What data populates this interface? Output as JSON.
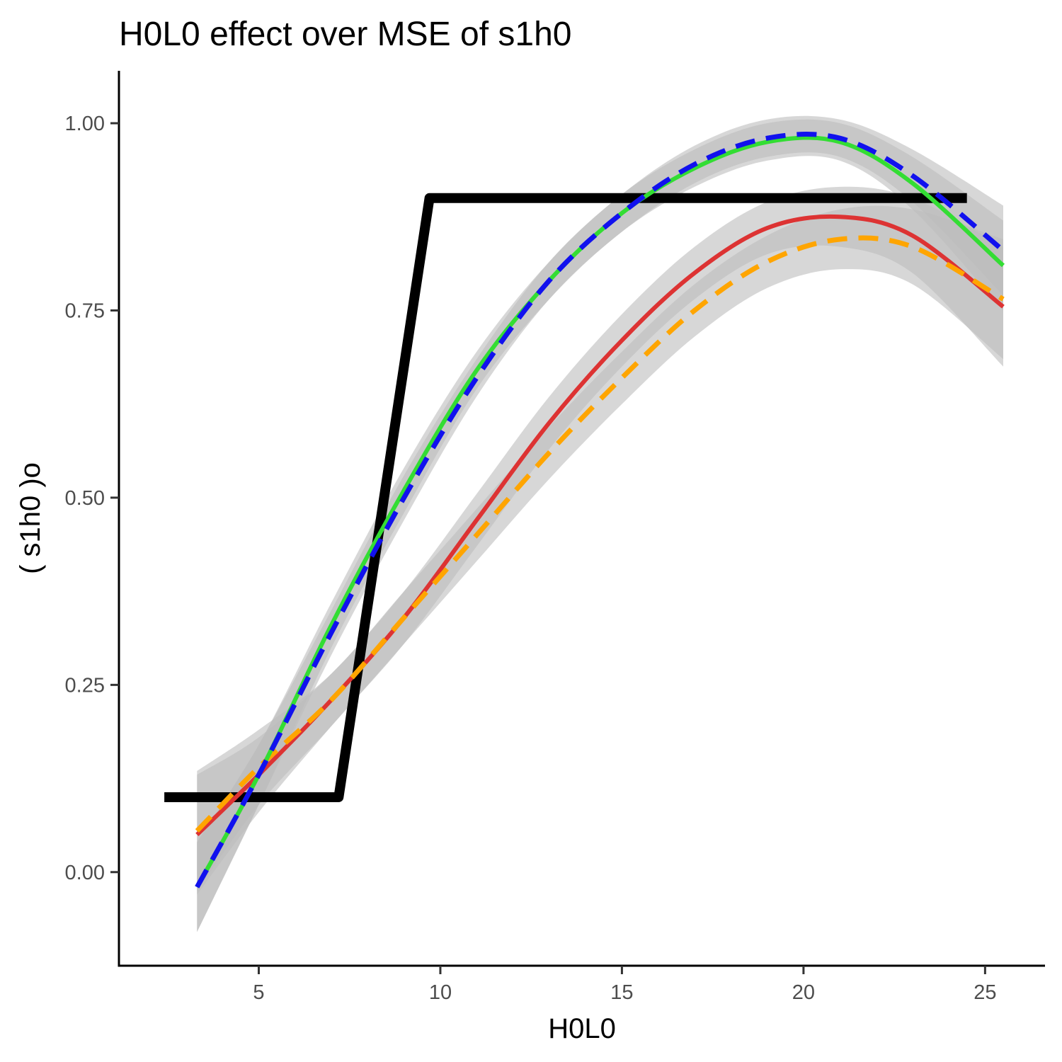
{
  "chart_data": {
    "type": "line",
    "title": "H0L0 effect over MSE of  s1h0",
    "xlabel": "H0L0",
    "ylabel": "( s1h0 )o",
    "xlim": [
      1.15,
      26.65
    ],
    "ylim": [
      -0.125,
      1.07
    ],
    "x_ticks": [
      5,
      10,
      15,
      20,
      25
    ],
    "x_tick_labels": [
      "5",
      "10",
      "15",
      "20",
      "25"
    ],
    "y_ticks": [
      0.0,
      0.25,
      0.5,
      0.75,
      1.0
    ],
    "y_tick_labels": [
      "0.00",
      "0.25",
      "0.50",
      "0.75",
      "1.00"
    ],
    "grid": false,
    "legend": "none",
    "step_series": {
      "color": "#000000",
      "x": [
        2.4,
        7.2,
        9.7,
        24.5
      ],
      "y": [
        0.1,
        0.1,
        0.9,
        0.9
      ]
    },
    "smooth_series": [
      {
        "color": "#1111ee",
        "dash": true,
        "ribbon_color": "#bdbdbd",
        "x": [
          3.3,
          5,
          7,
          9,
          11,
          13,
          15,
          17,
          19,
          21,
          23,
          25.5
        ],
        "y": [
          -0.02,
          0.13,
          0.32,
          0.5,
          0.66,
          0.79,
          0.88,
          0.945,
          0.98,
          0.98,
          0.93,
          0.83
        ],
        "band": [
          0.06,
          0.04,
          0.03,
          0.03,
          0.025,
          0.025,
          0.025,
          0.025,
          0.025,
          0.025,
          0.035,
          0.06
        ]
      },
      {
        "color": "#33dd33",
        "dash": false,
        "ribbon_color": "#bdbdbd",
        "x": [
          3.3,
          5,
          7,
          9,
          11,
          13,
          15,
          17,
          19,
          21,
          23,
          25.5
        ],
        "y": [
          -0.02,
          0.13,
          0.33,
          0.51,
          0.67,
          0.79,
          0.88,
          0.94,
          0.975,
          0.975,
          0.92,
          0.81
        ],
        "band": [
          0.06,
          0.04,
          0.03,
          0.03,
          0.025,
          0.025,
          0.025,
          0.025,
          0.025,
          0.025,
          0.035,
          0.06
        ]
      },
      {
        "color": "#dd3333",
        "dash": false,
        "ribbon_color": "#bdbdbd",
        "x": [
          3.3,
          5,
          7,
          9,
          11,
          13,
          15,
          17,
          19,
          21,
          23,
          25.5
        ],
        "y": [
          0.05,
          0.13,
          0.23,
          0.34,
          0.47,
          0.6,
          0.71,
          0.8,
          0.86,
          0.875,
          0.85,
          0.755
        ],
        "band": [
          0.08,
          0.05,
          0.035,
          0.035,
          0.035,
          0.035,
          0.035,
          0.035,
          0.035,
          0.04,
          0.05,
          0.08
        ]
      },
      {
        "color": "#ffa500",
        "dash": true,
        "ribbon_color": "#bdbdbd",
        "x": [
          3.3,
          5,
          7,
          9,
          11,
          13,
          15,
          17,
          19,
          21,
          23,
          25.5
        ],
        "y": [
          0.055,
          0.14,
          0.23,
          0.34,
          0.45,
          0.56,
          0.66,
          0.75,
          0.815,
          0.845,
          0.835,
          0.765
        ],
        "band": [
          0.08,
          0.05,
          0.035,
          0.035,
          0.035,
          0.035,
          0.035,
          0.035,
          0.035,
          0.04,
          0.05,
          0.08
        ]
      }
    ]
  }
}
